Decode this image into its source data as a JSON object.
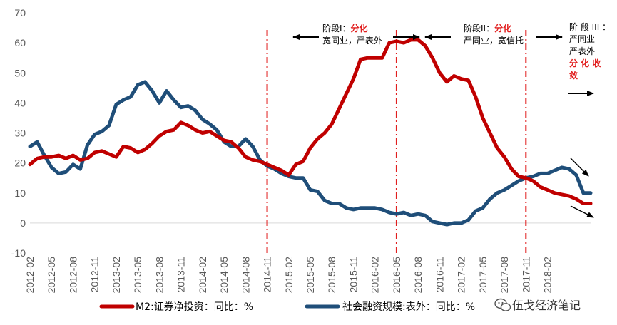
{
  "chart_data": {
    "type": "line",
    "ylim": [
      -10,
      70
    ],
    "yticks": [
      -10,
      0,
      10,
      20,
      30,
      40,
      50,
      60,
      70
    ],
    "x_start": "2012-02",
    "x_tick_labels": [
      "2012-02",
      "2012-05",
      "2012-08",
      "2012-11",
      "2013-02",
      "2013-05",
      "2013-08",
      "2013-11",
      "2014-02",
      "2014-05",
      "2014-08",
      "2014-11",
      "2015-02",
      "2015-05",
      "2015-08",
      "2015-11",
      "2016-02",
      "2016-05",
      "2016-08",
      "2016-11",
      "2017-02",
      "2017-05",
      "2017-08",
      "2017-11",
      "2018-02"
    ],
    "series": [
      {
        "name": "M2:证券净投资：同比：%",
        "color": "#c00000",
        "values": [
          19.5,
          21.5,
          22,
          22,
          22.5,
          21.5,
          22.5,
          21,
          21.5,
          23.5,
          24,
          23,
          22,
          25.5,
          25,
          23.5,
          24.5,
          26.5,
          29,
          30.5,
          31,
          33.5,
          32.5,
          31,
          30,
          30.5,
          29,
          27.5,
          27,
          25,
          22,
          21,
          20.5,
          19.5,
          18.5,
          17.5,
          16,
          19.5,
          20.5,
          25,
          28,
          30,
          33,
          38,
          43,
          48,
          54.5,
          55,
          55,
          55,
          60,
          60.5,
          60,
          61,
          61,
          59,
          55,
          50,
          47,
          49,
          48,
          47.5,
          42,
          35,
          30,
          25,
          22,
          18,
          15.5,
          15,
          14,
          12,
          11,
          10,
          9.5,
          9,
          8,
          6.5,
          6.5
        ]
      },
      {
        "name": "社会融资规模:表外：同比：%",
        "color": "#1f4e79",
        "values": [
          25.5,
          27,
          22.5,
          18.5,
          16.5,
          17,
          19.5,
          18,
          26,
          29.5,
          30.5,
          32.5,
          39.5,
          41,
          42,
          46,
          47,
          44,
          40,
          44,
          41,
          38.5,
          39,
          37.5,
          34.5,
          33,
          31,
          27,
          25.5,
          25.5,
          28,
          25.5,
          21,
          19,
          18,
          16.5,
          15.5,
          15,
          15,
          11,
          10.5,
          7.5,
          6.5,
          6.5,
          5,
          4.5,
          5,
          5,
          5,
          4.5,
          3.5,
          3,
          3.5,
          2.5,
          3,
          2.5,
          0.5,
          0,
          -0.5,
          0,
          0,
          1,
          4,
          5,
          8,
          10,
          11,
          12.5,
          14,
          15,
          15.5,
          16.5,
          16.5,
          17.5,
          18.5,
          18,
          16,
          10,
          10
        ]
      }
    ],
    "phase_lines": [
      "2014-11",
      "2016-05",
      "2017-11"
    ],
    "annotations": {
      "phase1_a": "阶段I：",
      "phase1_b": "分化",
      "phase1_c": "宽同业，严表外",
      "phase2_a": "阶段II：",
      "phase2_b": "分化",
      "phase2_c": "严同业，宽信托",
      "phase3_a": "阶 段 III ：",
      "phase3_b": "严同业",
      "phase3_c": "严表外",
      "phase3_d": "分 化 收",
      "phase3_e": "敛"
    },
    "legend_position": "bottom"
  },
  "watermark": {
    "text": "伍戈经济笔记",
    "icon": "wechat-icon"
  }
}
